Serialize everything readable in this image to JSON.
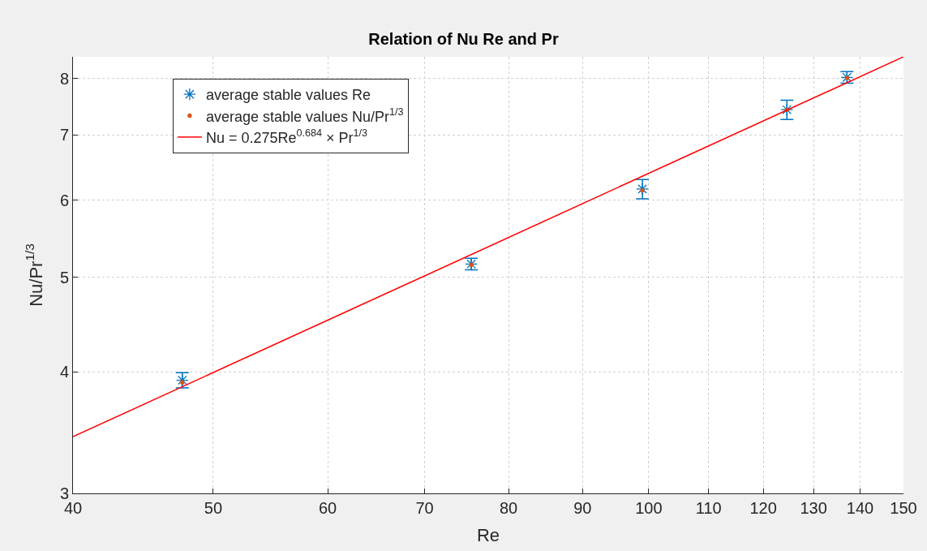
{
  "chart_data": {
    "type": "scatter",
    "title": "Relation of Nu Re and Pr",
    "xlabel": "Re",
    "ylabel": "Nu/Pr$^{1/3}$",
    "log": "xy",
    "grid": true,
    "legend": "top left",
    "xlim": [
      40,
      150
    ],
    "xticks": [
      40,
      50,
      60,
      70,
      80,
      90,
      100,
      110,
      120,
      130,
      140,
      150
    ],
    "ylim": [
      3,
      8.42
    ],
    "yticks": [
      3,
      4,
      5,
      6,
      7,
      8
    ],
    "series": [
      {
        "name": "average stable values Re",
        "marker": "cross",
        "color": "#0072bd",
        "x": [
          47.6,
          75.4,
          99.0,
          124.6,
          137.1
        ],
        "values": [
          3.92,
          5.16,
          6.16,
          7.43,
          8.02
        ],
        "errors": [
          0.07,
          0.07,
          0.14,
          0.17,
          0.11
        ]
      },
      {
        "name": "average stable values Nu/Pr$^{1/3}$",
        "marker": "circle",
        "color": "#d95319",
        "x": [
          47.6,
          75.4,
          99.0,
          124.6,
          137.1
        ],
        "values": [
          3.9,
          5.15,
          6.14,
          7.43,
          8.01
        ]
      },
      {
        "name": "Nu = 0.275Re$^{0.684}$ × Pr$^{1/3}$",
        "type": "line",
        "marker": "none",
        "color": "#ff0000",
        "x": [
          40,
          150
        ],
        "values": [
          3.43,
          8.42
        ]
      }
    ]
  }
}
